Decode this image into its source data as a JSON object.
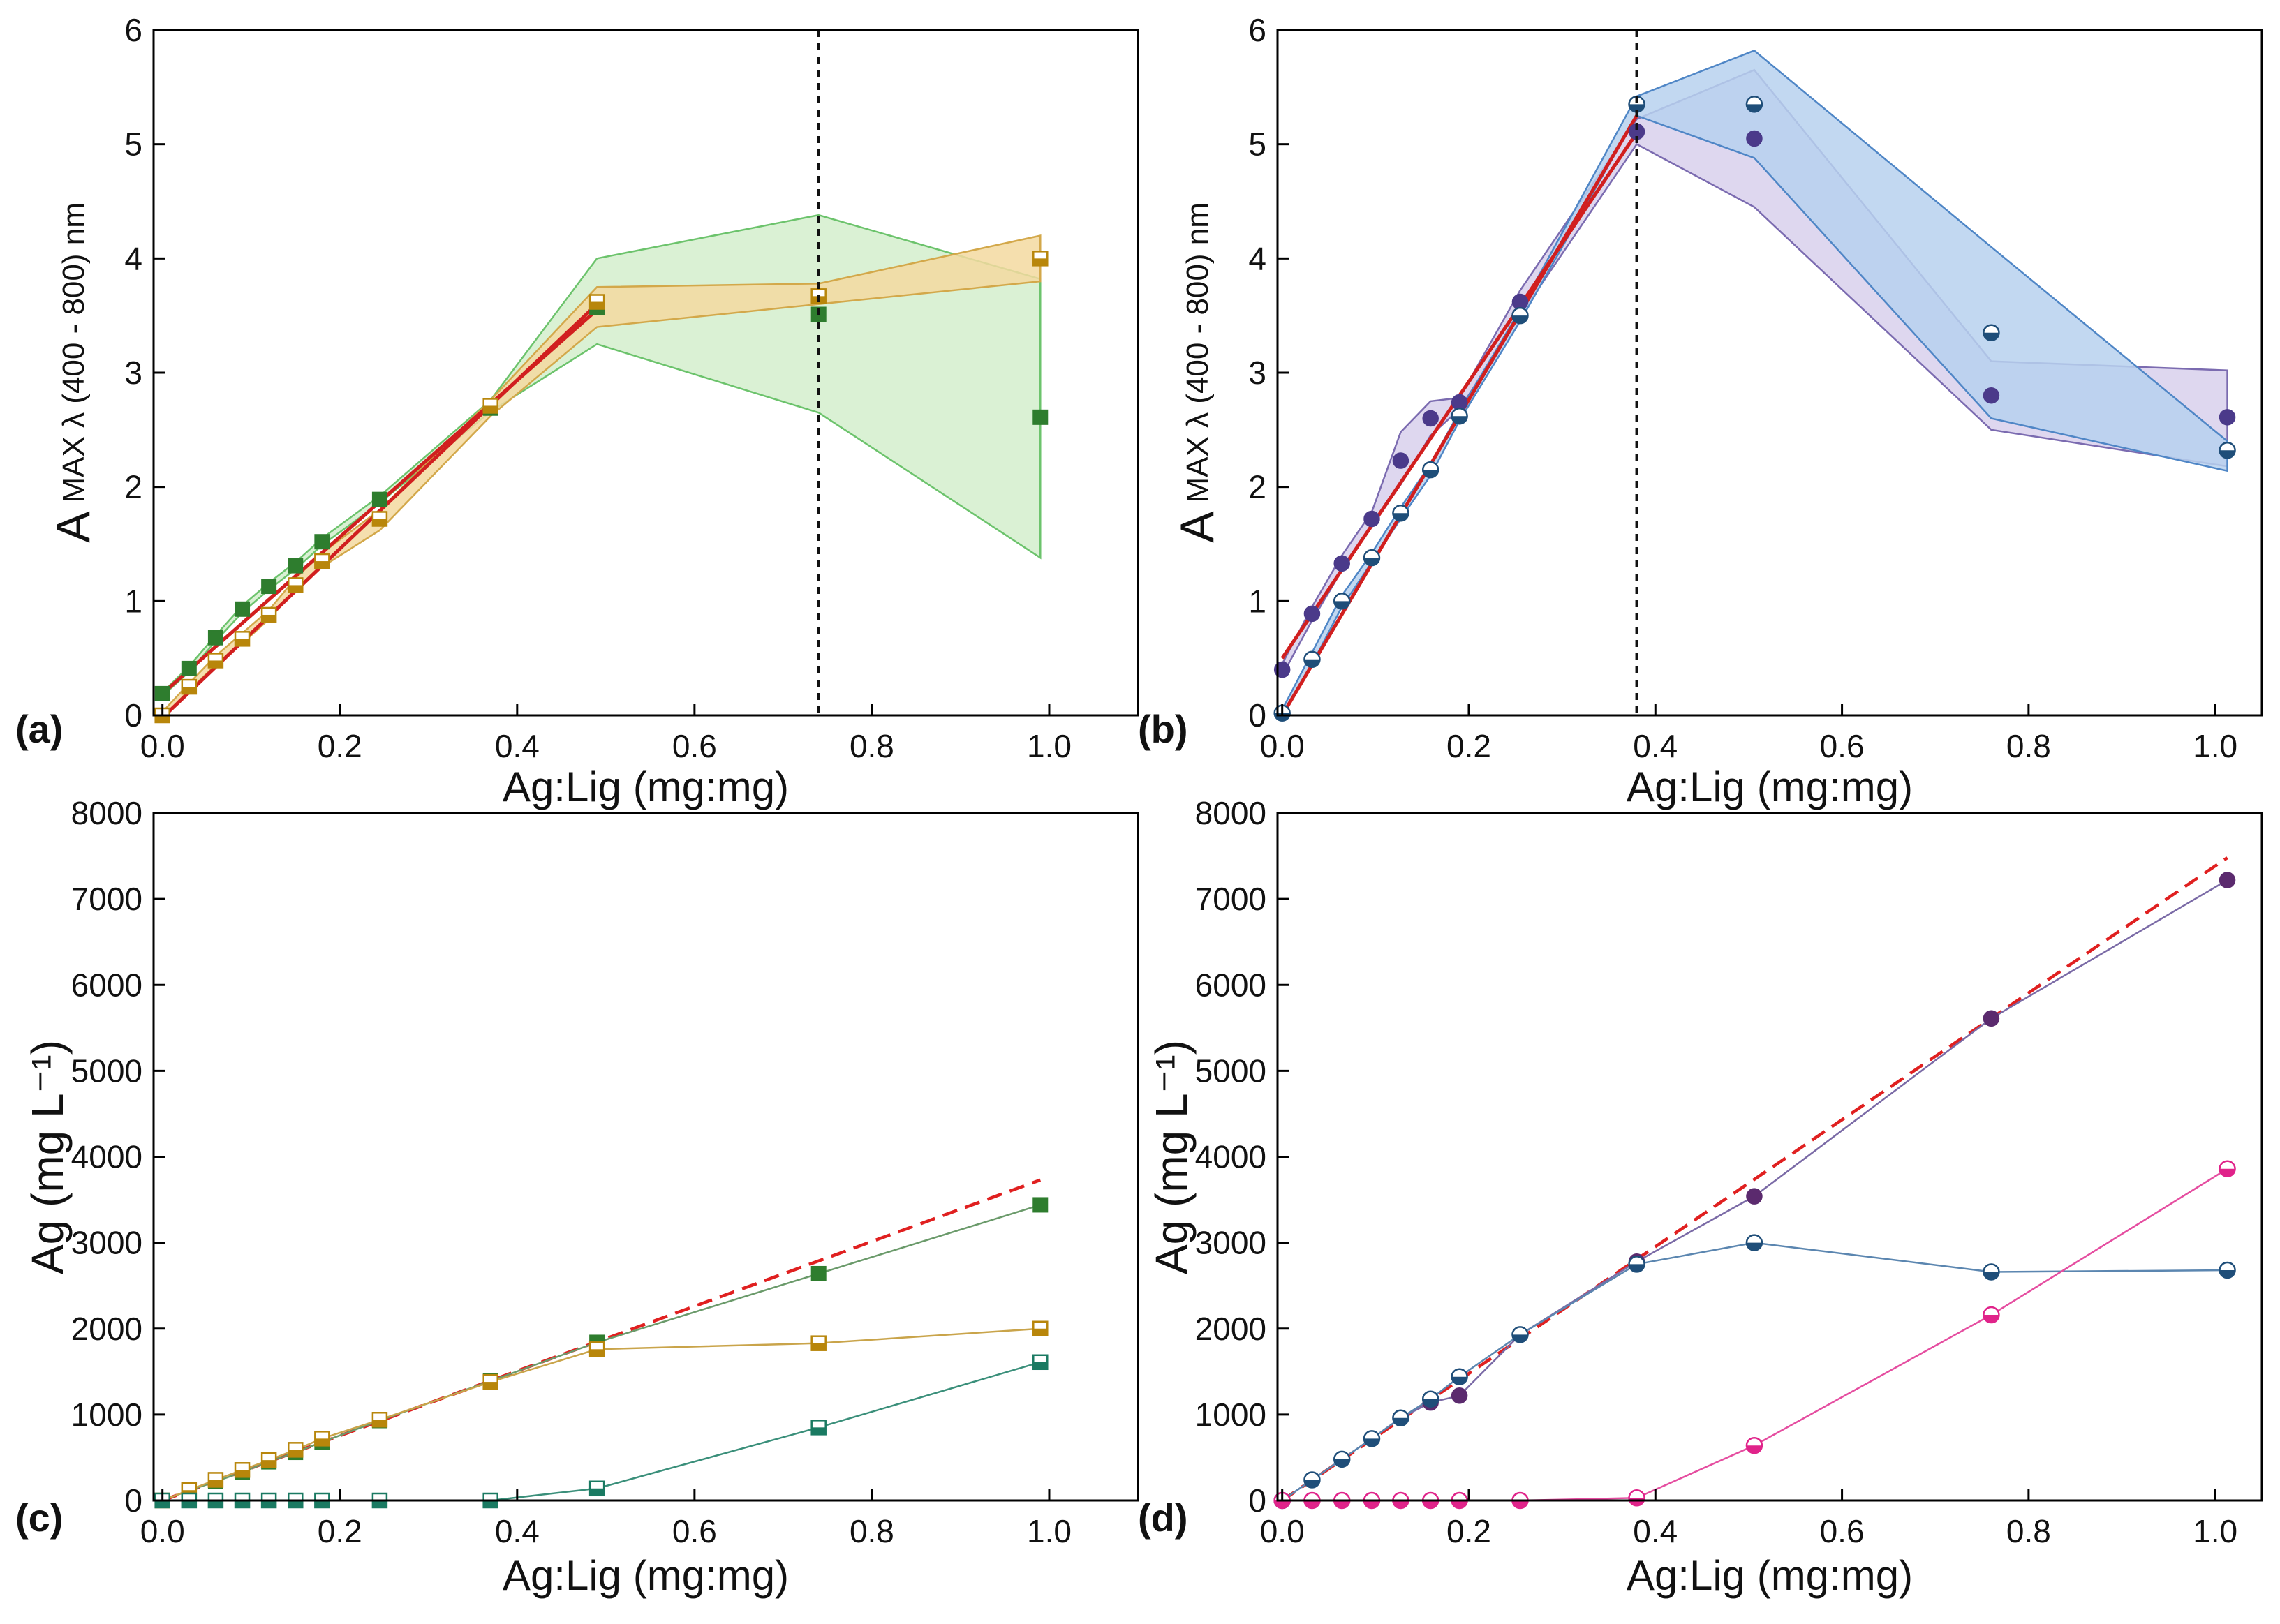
{
  "chart_data": [
    {
      "panel": "(a)",
      "type": "line",
      "xlabel": "Ag:Lig (mg:mg)",
      "ylabel": {
        "main": "A",
        "sub": "MAX λ (400 - 800) nm"
      },
      "xlim": [
        -0.01,
        1.1
      ],
      "ylim": [
        0,
        6
      ],
      "xticks": [
        0.0,
        0.2,
        0.4,
        0.6,
        0.8,
        1.0
      ],
      "xtick_labels": [
        "0.0",
        "0.2",
        "0.4",
        "0.6",
        "0.8",
        "1.0"
      ],
      "yticks": [
        0,
        1,
        2,
        3,
        4,
        5,
        6
      ],
      "ytick_labels": [
        "0",
        "1",
        "2",
        "3",
        "4",
        "5",
        "6"
      ],
      "vline": 0.74,
      "bands": [
        {
          "name": "green range",
          "color": "#6cc36c",
          "fill": "#d3efcc",
          "x": [
            0.0,
            0.03,
            0.06,
            0.09,
            0.12,
            0.15,
            0.18,
            0.245,
            0.37,
            0.49,
            0.74,
            0.99
          ],
          "upper": [
            0.2,
            0.43,
            0.7,
            0.96,
            1.16,
            1.34,
            1.55,
            1.92,
            2.76,
            4.0,
            4.38,
            3.82
          ],
          "lower": [
            0.17,
            0.38,
            0.65,
            0.9,
            1.1,
            1.28,
            1.49,
            1.86,
            2.66,
            3.25,
            2.65,
            1.38
          ]
        },
        {
          "name": "orange range",
          "color": "#d3a84a",
          "fill": "#f3d9a0",
          "x": [
            0.0,
            0.03,
            0.06,
            0.09,
            0.12,
            0.15,
            0.18,
            0.245,
            0.37,
            0.49,
            0.74,
            0.99
          ],
          "upper": [
            0.03,
            0.28,
            0.52,
            0.72,
            0.92,
            1.2,
            1.42,
            1.8,
            2.76,
            3.75,
            3.78,
            4.2
          ],
          "lower": [
            -0.02,
            0.22,
            0.44,
            0.63,
            0.84,
            1.1,
            1.3,
            1.62,
            2.62,
            3.4,
            3.6,
            3.8
          ]
        }
      ],
      "series": [
        {
          "name": "filled squares",
          "marker": "square-filled",
          "color": "#2e7d2e",
          "x": [
            0.0,
            0.03,
            0.06,
            0.09,
            0.12,
            0.15,
            0.18,
            0.245,
            0.37,
            0.49,
            0.74,
            0.99
          ],
          "values": [
            0.19,
            0.41,
            0.68,
            0.93,
            1.13,
            1.31,
            1.52,
            1.89,
            2.69,
            3.57,
            3.51,
            2.61
          ]
        },
        {
          "name": "half-filled squares",
          "marker": "square-half",
          "color": "#b8860b",
          "x": [
            0.0,
            0.03,
            0.06,
            0.09,
            0.12,
            0.15,
            0.18,
            0.245,
            0.37,
            0.49,
            0.74,
            0.99
          ],
          "values": [
            0.0,
            0.25,
            0.48,
            0.67,
            0.88,
            1.14,
            1.35,
            1.72,
            2.71,
            3.62,
            3.67,
            4.0
          ]
        }
      ],
      "fits": [
        {
          "color": "#d11f1f",
          "x": [
            0.0,
            0.49
          ],
          "y": [
            0.19,
            3.55
          ]
        },
        {
          "color": "#d11f1f",
          "x": [
            0.0,
            0.49
          ],
          "y": [
            -0.02,
            3.6
          ]
        }
      ]
    },
    {
      "panel": "(b)",
      "type": "line",
      "xlabel": "Ag:Lig (mg:mg)",
      "ylabel": {
        "main": "A",
        "sub": "MAX λ (400 - 800) nm"
      },
      "xlim": [
        -0.005,
        1.05
      ],
      "ylim": [
        0,
        6
      ],
      "xticks": [
        0.0,
        0.2,
        0.4,
        0.6,
        0.8,
        1.0
      ],
      "xtick_labels": [
        "0.0",
        "0.2",
        "0.4",
        "0.6",
        "0.8",
        "1.0"
      ],
      "yticks": [
        0,
        1,
        2,
        3,
        4,
        5,
        6
      ],
      "ytick_labels": [
        "0",
        "1",
        "2",
        "3",
        "4",
        "5",
        "6"
      ],
      "vline": 0.38,
      "bands": [
        {
          "name": "purple range",
          "color": "#7b6bb0",
          "fill": "#d8d0ec",
          "x": [
            0.0,
            0.032,
            0.064,
            0.096,
            0.127,
            0.159,
            0.19,
            0.255,
            0.38,
            0.506,
            0.76,
            1.013
          ],
          "upper": [
            0.45,
            0.95,
            1.4,
            1.78,
            2.48,
            2.75,
            2.78,
            3.72,
            5.22,
            5.65,
            3.1,
            3.02
          ],
          "lower": [
            0.35,
            0.83,
            1.27,
            1.66,
            2.02,
            2.45,
            2.68,
            3.5,
            5.0,
            4.45,
            2.5,
            2.18
          ]
        },
        {
          "name": "blue range",
          "color": "#4f86c6",
          "fill": "#b7d1ee",
          "x": [
            0.0,
            0.032,
            0.064,
            0.096,
            0.127,
            0.159,
            0.19,
            0.255,
            0.38,
            0.506,
            0.76,
            1.013
          ],
          "upper": [
            0.05,
            0.55,
            1.05,
            1.42,
            1.82,
            2.2,
            2.66,
            3.55,
            5.42,
            5.82,
            4.1,
            2.4
          ],
          "lower": [
            0.0,
            0.45,
            0.95,
            1.34,
            1.72,
            2.1,
            2.58,
            3.45,
            5.25,
            4.88,
            2.6,
            2.14
          ]
        }
      ],
      "series": [
        {
          "name": "filled circles",
          "marker": "circle-filled",
          "color": "#4b3a8a",
          "x": [
            0.0,
            0.032,
            0.064,
            0.096,
            0.127,
            0.159,
            0.19,
            0.255,
            0.38,
            0.506,
            0.76,
            1.013
          ],
          "values": [
            0.4,
            0.89,
            1.33,
            1.72,
            2.23,
            2.6,
            2.74,
            3.62,
            5.11,
            5.05,
            2.8,
            2.61
          ]
        },
        {
          "name": "half-filled circles",
          "marker": "circle-half",
          "color": "#1f4e79",
          "x": [
            0.0,
            0.032,
            0.064,
            0.096,
            0.127,
            0.159,
            0.19,
            0.255,
            0.38,
            0.506,
            0.76,
            1.013
          ],
          "values": [
            0.02,
            0.49,
            1.0,
            1.38,
            1.77,
            2.15,
            2.62,
            3.5,
            5.35,
            5.35,
            3.35,
            2.32
          ]
        }
      ],
      "fits": [
        {
          "color": "#d11f1f",
          "x": [
            0.0,
            0.38
          ],
          "y": [
            0.5,
            5.1
          ]
        },
        {
          "color": "#d11f1f",
          "x": [
            0.0,
            0.38
          ],
          "y": [
            0.0,
            5.25
          ]
        }
      ]
    },
    {
      "panel": "(c)",
      "type": "line",
      "xlabel": "Ag:Lig (mg:mg)",
      "ylabel": {
        "main": "Ag (mg L⁻¹)"
      },
      "xlim": [
        -0.01,
        1.1
      ],
      "ylim": [
        0,
        8000
      ],
      "xticks": [
        0.0,
        0.2,
        0.4,
        0.6,
        0.8,
        1.0
      ],
      "xtick_labels": [
        "0.0",
        "0.2",
        "0.4",
        "0.6",
        "0.8",
        "1.0"
      ],
      "yticks": [
        0,
        1000,
        2000,
        3000,
        4000,
        5000,
        6000,
        7000,
        8000
      ],
      "ytick_labels": [
        "0",
        "1000",
        "2000",
        "3000",
        "4000",
        "5000",
        "6000",
        "7000",
        "8000"
      ],
      "reference_line": {
        "color": "#e02020",
        "style": "dashed",
        "x": [
          0.0,
          0.99
        ],
        "y": [
          0,
          3730
        ]
      },
      "series": [
        {
          "name": "filled squares (total)",
          "marker": "square-filled",
          "color": "#2e7d2e",
          "line": "#6a9a6a",
          "x": [
            0.0,
            0.03,
            0.06,
            0.09,
            0.12,
            0.15,
            0.18,
            0.245,
            0.37,
            0.49,
            0.74,
            0.99
          ],
          "values": [
            0,
            115,
            220,
            330,
            450,
            560,
            680,
            930,
            1390,
            1840,
            2640,
            3440
          ]
        },
        {
          "name": "half-filled squares",
          "marker": "square-half",
          "color": "#b8860b",
          "line": "#c9a44a",
          "x": [
            0.0,
            0.03,
            0.06,
            0.09,
            0.12,
            0.15,
            0.18,
            0.245,
            0.37,
            0.49,
            0.74,
            0.99
          ],
          "values": [
            0,
            120,
            240,
            355,
            470,
            590,
            720,
            940,
            1380,
            1760,
            1830,
            2000
          ]
        },
        {
          "name": "teal squares",
          "marker": "square-half",
          "color": "#1a7a62",
          "line": "#3a8f7a",
          "x": [
            0.0,
            0.03,
            0.06,
            0.09,
            0.12,
            0.15,
            0.18,
            0.245,
            0.37,
            0.49,
            0.74,
            0.99
          ],
          "values": [
            0,
            0,
            0,
            0,
            0,
            0,
            0,
            0,
            0,
            140,
            850,
            1610
          ]
        }
      ]
    },
    {
      "panel": "(d)",
      "type": "line",
      "xlabel": "Ag:Lig (mg:mg)",
      "ylabel": {
        "main": "Ag (mg L⁻¹)"
      },
      "xlim": [
        -0.005,
        1.05
      ],
      "ylim": [
        0,
        8000
      ],
      "xticks": [
        0.0,
        0.2,
        0.4,
        0.6,
        0.8,
        1.0
      ],
      "xtick_labels": [
        "0.0",
        "0.2",
        "0.4",
        "0.6",
        "0.8",
        "1.0"
      ],
      "yticks": [
        0,
        1000,
        2000,
        3000,
        4000,
        5000,
        6000,
        7000,
        8000
      ],
      "ytick_labels": [
        "0",
        "1000",
        "2000",
        "3000",
        "4000",
        "5000",
        "6000",
        "7000",
        "8000"
      ],
      "reference_line": {
        "color": "#e02020",
        "style": "dashed",
        "x": [
          0.0,
          1.013
        ],
        "y": [
          0,
          7480
        ]
      },
      "series": [
        {
          "name": "filled purple circles",
          "marker": "circle-filled",
          "color": "#5b2a6e",
          "line": "#7a6aa6",
          "x": [
            0.0,
            0.032,
            0.064,
            0.096,
            0.127,
            0.159,
            0.19,
            0.255,
            0.38,
            0.506,
            0.76,
            1.013
          ],
          "values": [
            0,
            240,
            480,
            720,
            960,
            1140,
            1220,
            1930,
            2780,
            3540,
            5610,
            7220
          ]
        },
        {
          "name": "half-filled blue circles",
          "marker": "circle-half",
          "color": "#1f4e79",
          "line": "#5b86b0",
          "x": [
            0.0,
            0.032,
            0.064,
            0.096,
            0.127,
            0.159,
            0.19,
            0.255,
            0.38,
            0.506,
            0.76,
            1.013
          ],
          "values": [
            0,
            240,
            480,
            720,
            960,
            1180,
            1440,
            1930,
            2750,
            3000,
            2660,
            2680
          ]
        },
        {
          "name": "half-filled pink circles",
          "marker": "circle-half",
          "color": "#e0238a",
          "line": "#e54da0",
          "x": [
            0.0,
            0.032,
            0.064,
            0.096,
            0.127,
            0.159,
            0.19,
            0.255,
            0.38,
            0.506,
            0.76,
            1.013
          ],
          "values": [
            0,
            0,
            0,
            0,
            0,
            0,
            0,
            0,
            30,
            640,
            2160,
            3860
          ]
        }
      ]
    }
  ]
}
